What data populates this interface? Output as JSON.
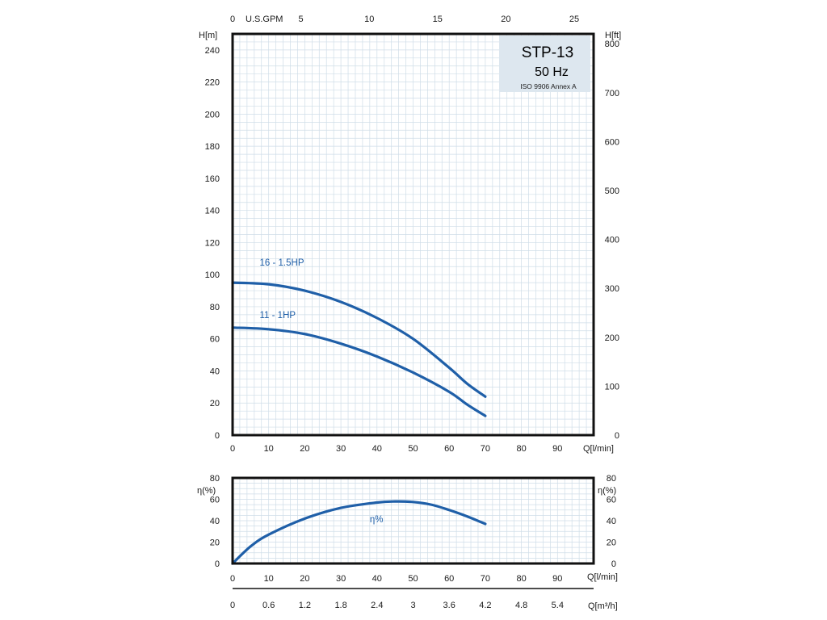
{
  "title_box": {
    "model": "STP-13",
    "frequency": "50 Hz",
    "standard": "ISO 9906 Annex A"
  },
  "colors": {
    "curve": "#1f5fa8",
    "text_accent": "#1f5fa8"
  },
  "chart_data": [
    {
      "type": "line",
      "title": "STP-13 50 Hz",
      "xlabel": "Q[l/min]",
      "ylabel": "H[m]",
      "ylabel_right": "H[ft]",
      "xlabel_top": "U.S.GPM",
      "xlim": [
        0,
        100
      ],
      "ylim": [
        0,
        250
      ],
      "x_ticks": [
        0,
        10,
        20,
        30,
        40,
        50,
        60,
        70,
        80,
        90
      ],
      "y_ticks": [
        0,
        20,
        40,
        60,
        80,
        100,
        120,
        140,
        160,
        180,
        200,
        220,
        240
      ],
      "y_right_ticks": [
        0,
        100,
        200,
        300,
        400,
        500,
        600,
        700,
        800
      ],
      "x_top_ticks": [
        0,
        5,
        10,
        15,
        20,
        25
      ],
      "grid": true,
      "series": [
        {
          "name": "16 - 1.5HP",
          "x": [
            0,
            10,
            20,
            30,
            40,
            50,
            60,
            65,
            70
          ],
          "values": [
            95,
            94,
            90,
            83,
            73,
            60,
            42,
            32,
            24
          ]
        },
        {
          "name": "11 - 1HP",
          "x": [
            0,
            10,
            20,
            30,
            40,
            50,
            60,
            65,
            70
          ],
          "values": [
            67,
            66,
            63,
            57,
            49,
            39,
            27,
            19,
            12
          ]
        }
      ]
    },
    {
      "type": "line",
      "xlabel": "Q[l/min]",
      "xlabel_secondary": "Q[m³/h]",
      "ylabel": "η(%)",
      "ylabel_right": "η(%)",
      "xlim": [
        0,
        100
      ],
      "ylim": [
        0,
        80
      ],
      "x_ticks": [
        0,
        10,
        20,
        30,
        40,
        50,
        60,
        70,
        80,
        90
      ],
      "y_ticks": [
        0,
        20,
        40,
        60,
        80
      ],
      "y_right_ticks": [
        0,
        20,
        40,
        60,
        80
      ],
      "x_secondary_ticks": [
        "0",
        "0.6",
        "1.2",
        "1.8",
        "2.4",
        "3",
        "3.6",
        "4.2",
        "4.8",
        "5.4"
      ],
      "grid": true,
      "series": [
        {
          "name": "η%",
          "x": [
            0,
            5,
            10,
            20,
            30,
            40,
            45,
            50,
            55,
            60,
            65,
            70
          ],
          "values": [
            0,
            16,
            27,
            42,
            52,
            57,
            58,
            57.5,
            55,
            50,
            44,
            37
          ]
        }
      ]
    }
  ]
}
